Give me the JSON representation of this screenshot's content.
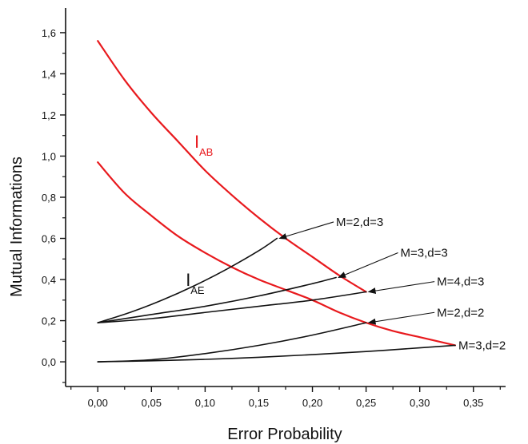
{
  "chart_data": {
    "type": "line",
    "xlabel": "Error Probability",
    "ylabel": "Mutual Informations",
    "xlim": [
      -0.03,
      0.38
    ],
    "ylim": [
      -0.12,
      1.72
    ],
    "xticks": [
      0.0,
      0.05,
      0.1,
      0.15,
      0.2,
      0.25,
      0.3,
      0.35
    ],
    "xtick_labels": [
      "0,00",
      "0,05",
      "0,10",
      "0,15",
      "0,20",
      "0,25",
      "0,30",
      "0,35"
    ],
    "yticks": [
      0.0,
      0.2,
      0.4,
      0.6,
      0.8,
      1.0,
      1.2,
      1.4,
      1.6
    ],
    "ytick_labels": [
      "0,0",
      "0,2",
      "0,4",
      "0,6",
      "0,8",
      "1,0",
      "1,2",
      "1,4",
      "1,6"
    ],
    "colors": {
      "iab": "#e8191d",
      "iae": "#111111",
      "axis": "#111111"
    },
    "iab_label": {
      "main": "I",
      "sub": "AB"
    },
    "iae_label": {
      "main": "I",
      "sub": "AE"
    },
    "series": [
      {
        "kind": "iab",
        "color": "#e8191d",
        "x": [
          0.0,
          0.025,
          0.05,
          0.075,
          0.1,
          0.125,
          0.15,
          0.175,
          0.2,
          0.225,
          0.25
        ],
        "y": [
          1.56,
          1.37,
          1.21,
          1.07,
          0.93,
          0.81,
          0.7,
          0.6,
          0.51,
          0.42,
          0.34
        ]
      },
      {
        "kind": "iab",
        "color": "#e8191d",
        "x": [
          0.0,
          0.025,
          0.05,
          0.075,
          0.1,
          0.125,
          0.15,
          0.175,
          0.2,
          0.225,
          0.25,
          0.275,
          0.3,
          0.333
        ],
        "y": [
          0.97,
          0.82,
          0.71,
          0.61,
          0.53,
          0.46,
          0.4,
          0.35,
          0.3,
          0.24,
          0.19,
          0.15,
          0.12,
          0.08
        ]
      },
      {
        "kind": "iae",
        "annotation": "M=2,d=3",
        "color": "#111111",
        "x": [
          0.0,
          0.03,
          0.06,
          0.09,
          0.12,
          0.15,
          0.167
        ],
        "y": [
          0.19,
          0.24,
          0.3,
          0.37,
          0.45,
          0.54,
          0.6
        ]
      },
      {
        "kind": "iae",
        "annotation": "M=3,d=3",
        "color": "#111111",
        "x": [
          0.0,
          0.05,
          0.1,
          0.15,
          0.2,
          0.222
        ],
        "y": [
          0.19,
          0.23,
          0.27,
          0.32,
          0.38,
          0.41
        ]
      },
      {
        "kind": "iae",
        "annotation": "M=4,d=3",
        "color": "#111111",
        "x": [
          0.0,
          0.05,
          0.1,
          0.15,
          0.2,
          0.25
        ],
        "y": [
          0.19,
          0.21,
          0.24,
          0.27,
          0.3,
          0.34
        ]
      },
      {
        "kind": "iae",
        "annotation": "M=2,d=2",
        "color": "#111111",
        "x": [
          0.0,
          0.05,
          0.1,
          0.15,
          0.2,
          0.25
        ],
        "y": [
          0.0,
          0.01,
          0.04,
          0.08,
          0.13,
          0.19
        ]
      },
      {
        "kind": "iae",
        "annotation": "M=3,d=2",
        "color": "#111111",
        "x": [
          0.0,
          0.05,
          0.1,
          0.15,
          0.2,
          0.25,
          0.3,
          0.333
        ],
        "y": [
          0.0,
          0.005,
          0.012,
          0.022,
          0.035,
          0.05,
          0.068,
          0.08
        ]
      }
    ],
    "annotations": [
      {
        "text": "M=2,d=3",
        "target": [
          0.167,
          0.6
        ],
        "text_at": [
          0.222,
          0.68
        ]
      },
      {
        "text": "M=3,d=3",
        "target": [
          0.222,
          0.41
        ],
        "text_at": [
          0.282,
          0.53
        ]
      },
      {
        "text": "M=4,d=3",
        "target": [
          0.25,
          0.34
        ],
        "text_at": [
          0.316,
          0.39
        ]
      },
      {
        "text": "M=2,d=2",
        "target": [
          0.25,
          0.19
        ],
        "text_at": [
          0.316,
          0.24
        ]
      },
      {
        "text": "M=3,d=2",
        "target": [
          0.333,
          0.08
        ],
        "text_at": [
          0.336,
          0.08
        ]
      }
    ],
    "iab_label_at": [
      0.09,
      1.04
    ],
    "iae_label_at": [
      0.082,
      0.37
    ]
  }
}
